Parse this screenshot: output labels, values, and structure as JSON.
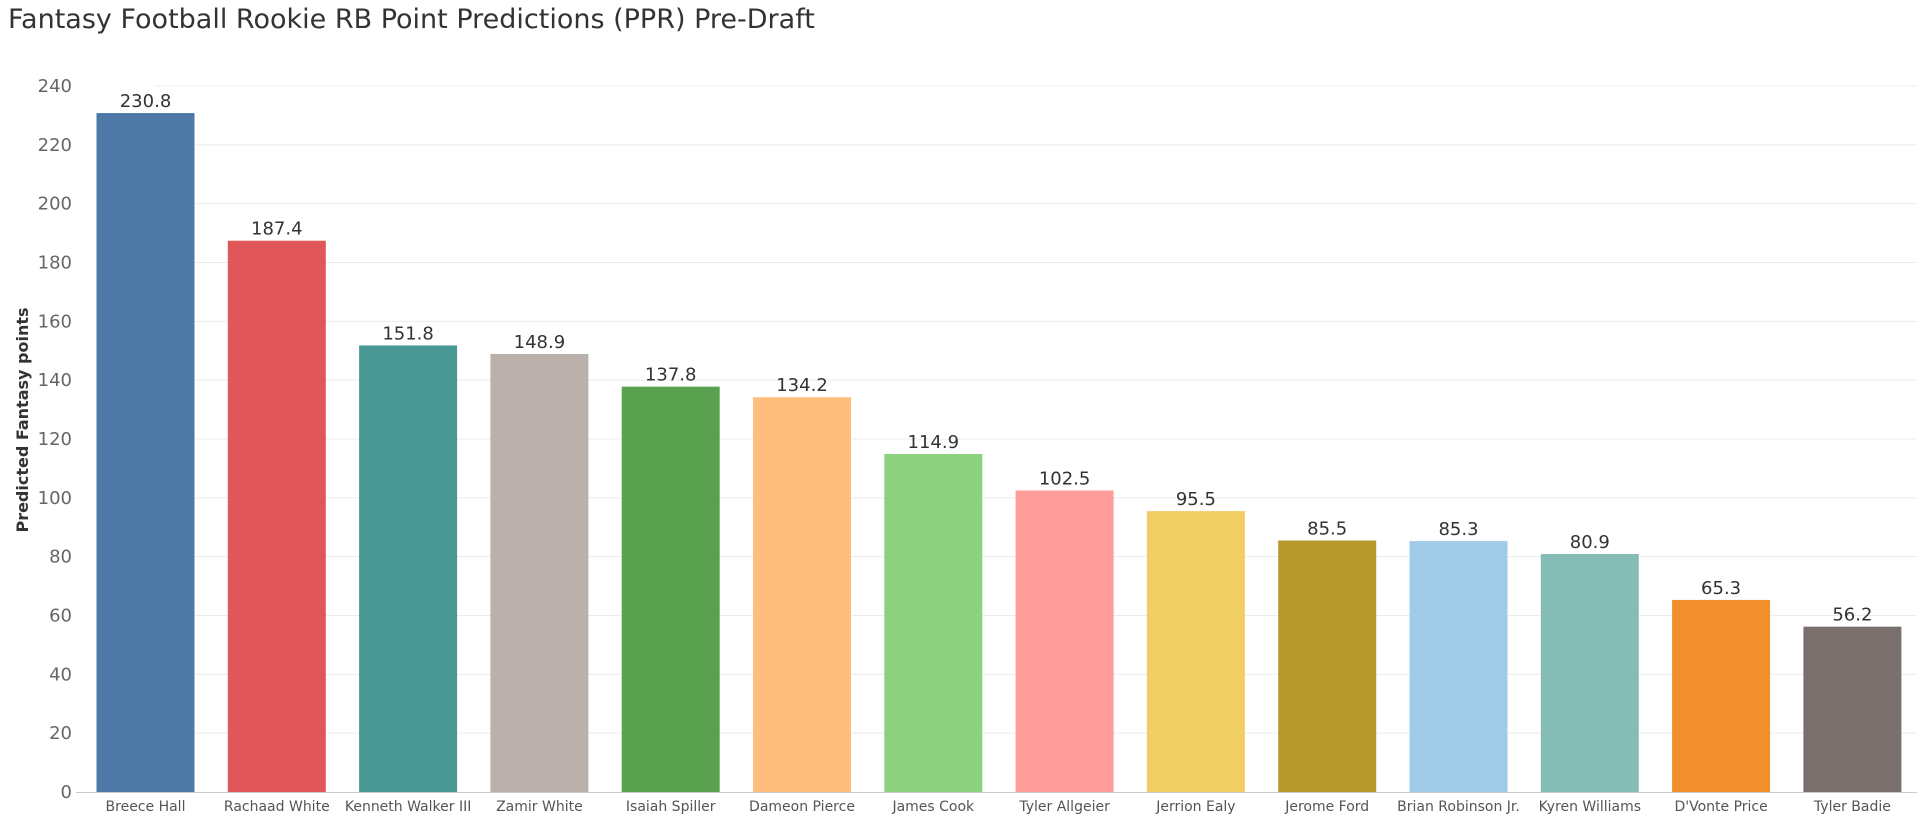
{
  "title": "Fantasy Football Rookie RB Point Predictions (PPR) Pre-Draft",
  "chart_data": {
    "type": "bar",
    "title": "Fantasy Football Rookie RB Point Predictions (PPR) Pre-Draft",
    "xlabel": "",
    "ylabel": "Predicted Fantasy points",
    "ylim": [
      0,
      240
    ],
    "y_ticks": [
      0,
      20,
      40,
      60,
      80,
      100,
      120,
      140,
      160,
      180,
      200,
      220,
      240
    ],
    "grid": true,
    "legend": "none",
    "categories": [
      "Breece Hall",
      "Rachaad White",
      "Kenneth Walker III",
      "Zamir White",
      "Isaiah Spiller",
      "Dameon Pierce",
      "James Cook",
      "Tyler Allgeier",
      "Jerrion Ealy",
      "Jerome Ford",
      "Brian Robinson Jr.",
      "Kyren Williams",
      "D'Vonte Price",
      "Tyler Badie"
    ],
    "values": [
      230.8,
      187.4,
      151.8,
      148.9,
      137.8,
      134.2,
      114.9,
      102.5,
      95.5,
      85.5,
      85.3,
      80.9,
      65.3,
      56.2
    ],
    "data_labels": [
      "230.8",
      "187.4",
      "151.8",
      "148.9",
      "137.8",
      "134.2",
      "114.9",
      "102.5",
      "95.5",
      "85.5",
      "85.3",
      "80.9",
      "65.3",
      "56.2"
    ],
    "colors": [
      "#4e79a7",
      "#e15759",
      "#499894",
      "#bab0ac",
      "#59a14f",
      "#ffbe7d",
      "#8cd17d",
      "#ff9d9a",
      "#f1ce63",
      "#b6992d",
      "#a0cbe8",
      "#86bcb6",
      "#f28e2b",
      "#79706e"
    ]
  }
}
